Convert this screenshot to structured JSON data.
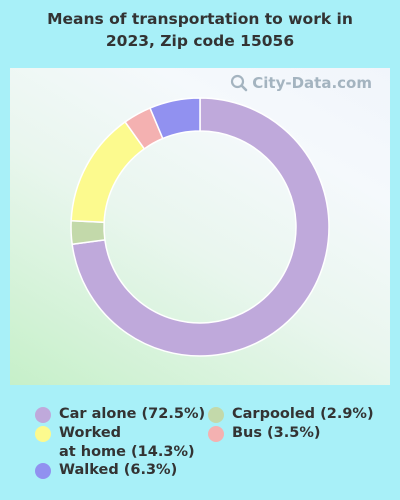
{
  "title_line1": "Means of transportation to work in",
  "title_line2": "2023, Zip code 15056",
  "watermark": "City-Data.com",
  "chart_data": {
    "type": "pie",
    "variant": "donut",
    "title": "Means of transportation to work in 2023, Zip code 15056",
    "slices": [
      {
        "label": "Car alone",
        "value": 72.5,
        "color": "#bfa9db"
      },
      {
        "label": "Carpooled",
        "value": 2.9,
        "color": "#c3d9aa"
      },
      {
        "label": "Worked at home",
        "value": 14.3,
        "color": "#fcfa8e"
      },
      {
        "label": "Bus",
        "value": 3.5,
        "color": "#f4b1b1"
      },
      {
        "label": "Walked",
        "value": 6.3,
        "color": "#9191f0"
      }
    ]
  },
  "legend": [
    {
      "line1": "Car alone (72.5%)",
      "line2": "",
      "color": "#bfa9db"
    },
    {
      "line1": "Worked",
      "line2": "at home (14.3%)",
      "color": "#fcfa8e"
    },
    {
      "line1": "Walked (6.3%)",
      "line2": "",
      "color": "#9191f0"
    },
    {
      "line1": "Carpooled (2.9%)",
      "line2": "",
      "color": "#c3d9aa"
    },
    {
      "line1": "Bus (3.5%)",
      "line2": "",
      "color": "#f4b1b1"
    }
  ]
}
